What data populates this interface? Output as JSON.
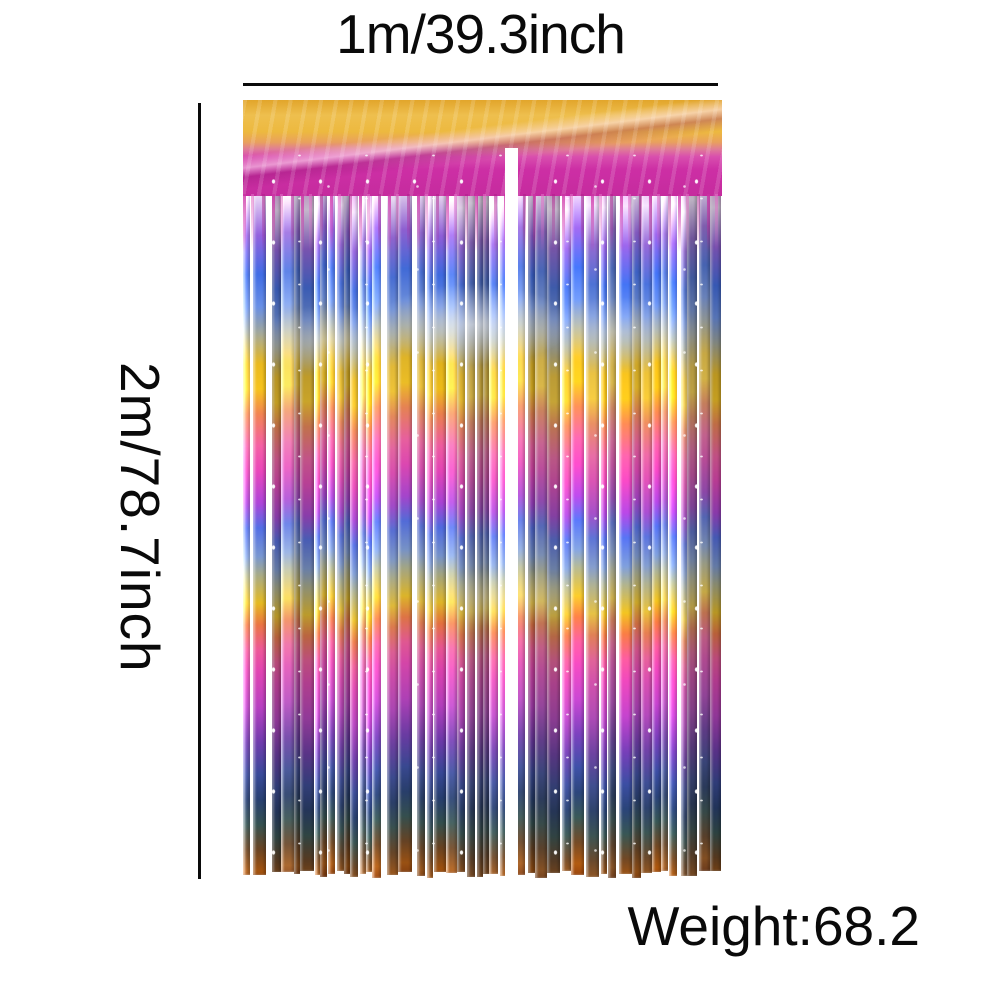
{
  "image_type": "product-dimension-diagram",
  "background_color": "#ffffff",
  "annotation_color": "#0a0a0a",
  "labels": {
    "width": "1m/39.3inch",
    "height": "2m/78.7inch",
    "weight": "Weight:68.2"
  },
  "curtain": {
    "description": "rainbow metallic foil fringe tinsel curtain, two panels, gold crumpled top rod pocket with magenta band, vertical shiny strands with repeating purple-blue-silver-gold-orange-magenta bands darkening toward rust tips",
    "header_colors": {
      "gold_top": "#e2a52b",
      "gold_bright": "#eebf4e",
      "sheen_pink": "#e07e96",
      "magenta": "#cd2fa5",
      "magenta_light": "#e36cc4"
    },
    "panel_gap": {
      "left_pct": 54.8,
      "width_pct": 2.7,
      "color": "#ffffff"
    },
    "strand_seed": 20240615,
    "strand_stops": [
      [
        0.0,
        "#dca4de"
      ],
      [
        3.5,
        "#ecdcf4"
      ],
      [
        9.0,
        "#8f66cb"
      ],
      [
        14.5,
        "#4a6ecf"
      ],
      [
        19.0,
        "#7190d6"
      ],
      [
        22.5,
        "#a0a6a0"
      ],
      [
        27.0,
        "#e2bb3e"
      ],
      [
        30.5,
        "#eec53e"
      ],
      [
        34.0,
        "#e28a60"
      ],
      [
        38.5,
        "#e168a0"
      ],
      [
        42.0,
        "#d450ae"
      ],
      [
        46.5,
        "#a14cc4"
      ],
      [
        50.0,
        "#5a70d0"
      ],
      [
        54.0,
        "#8098c6"
      ],
      [
        56.5,
        "#a8ab90"
      ],
      [
        60.5,
        "#debb40"
      ],
      [
        63.5,
        "#d97b52"
      ],
      [
        67.0,
        "#d96094"
      ],
      [
        70.0,
        "#cc4ea6"
      ],
      [
        75.0,
        "#a948b0"
      ],
      [
        80.0,
        "#6a409c"
      ],
      [
        84.5,
        "#3d4b8b"
      ],
      [
        88.0,
        "#2d4068"
      ],
      [
        91.5,
        "#3a5150"
      ],
      [
        95.0,
        "#65462b"
      ],
      [
        98.0,
        "#96561f"
      ],
      [
        100.0,
        "#7c3e18"
      ]
    ]
  }
}
